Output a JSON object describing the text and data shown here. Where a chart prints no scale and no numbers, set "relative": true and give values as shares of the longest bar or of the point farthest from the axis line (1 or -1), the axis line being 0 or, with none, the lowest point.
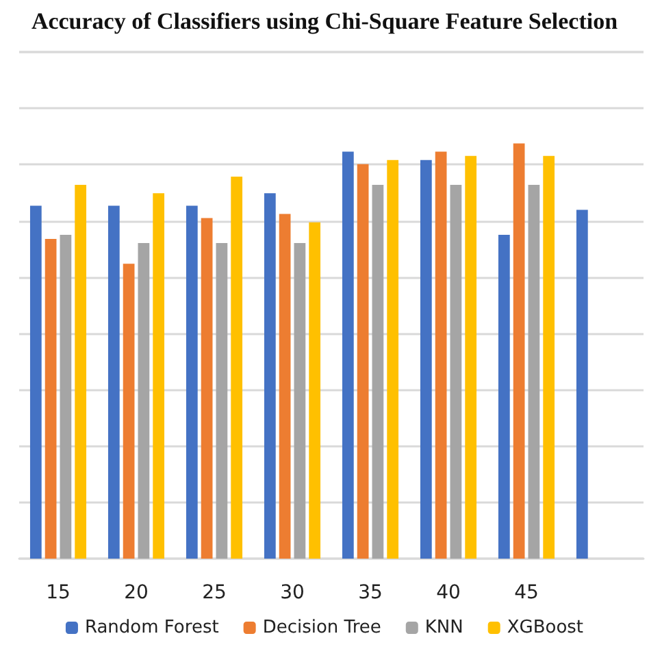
{
  "chart_data": {
    "type": "bar",
    "title": "Accuracy of Classifiers using Chi-Square Feature Selection",
    "categories": [
      "15",
      "20",
      "25",
      "30",
      "35",
      "40",
      "45",
      null
    ],
    "relative": true,
    "grid": "y",
    "legend": "bottom",
    "series": [
      {
        "name": "Random Forest",
        "color": "#4472c4",
        "values": [
          0.85,
          0.85,
          0.85,
          0.88,
          0.98,
          0.96,
          0.78,
          0.84
        ]
      },
      {
        "name": "Decision Tree",
        "color": "#ed7d31",
        "values": [
          0.77,
          0.71,
          0.82,
          0.83,
          0.95,
          0.98,
          1,
          null
        ]
      },
      {
        "name": "KNN",
        "color": "#a5a5a5",
        "values": [
          0.78,
          0.76,
          0.76,
          0.76,
          0.9,
          0.9,
          0.9,
          null
        ]
      },
      {
        "name": "XGBoost",
        "color": "#ffc000",
        "values": [
          0.9,
          0.88,
          0.92,
          0.81,
          0.96,
          0.97,
          0.97,
          null
        ]
      }
    ]
  }
}
